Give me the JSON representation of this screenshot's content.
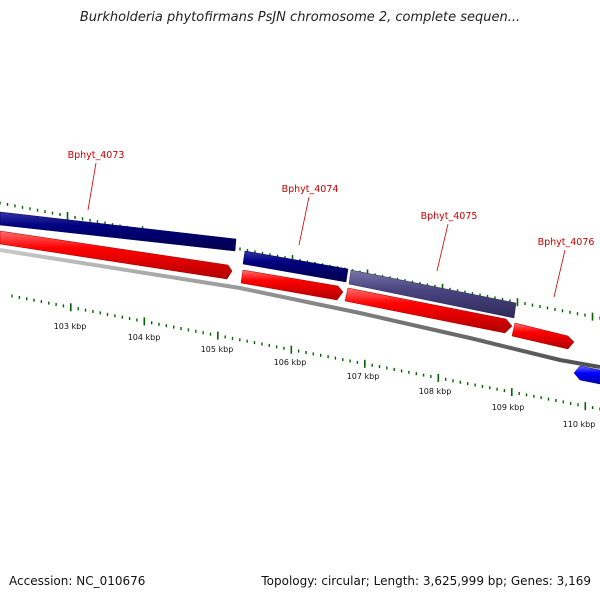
{
  "title": "Burkholderia phytofirmans PsJN chromosome 2, complete sequen...",
  "footer": {
    "accession": "Accession: NC_010676",
    "summary": "Topology: circular; Length: 3,625,999 bp; Genes: 3,169"
  },
  "colors": {
    "cds_forward": "#000080",
    "cds_forward_selected": "#4a4580",
    "gene_forward": "#ff0000",
    "gene_reverse": "#0000ff",
    "backbone": "#808080",
    "tick": "#006400",
    "gene_label": "#cc0000"
  },
  "gene_labels": [
    "Bphyt_4073",
    "Bphyt_4074",
    "Bphyt_4075",
    "Bphyt_4076"
  ],
  "kbp_labels": [
    "103 kbp",
    "104 kbp",
    "105 kbp",
    "106 kbp",
    "107 kbp",
    "108 kbp",
    "109 kbp",
    "110 kbp"
  ]
}
